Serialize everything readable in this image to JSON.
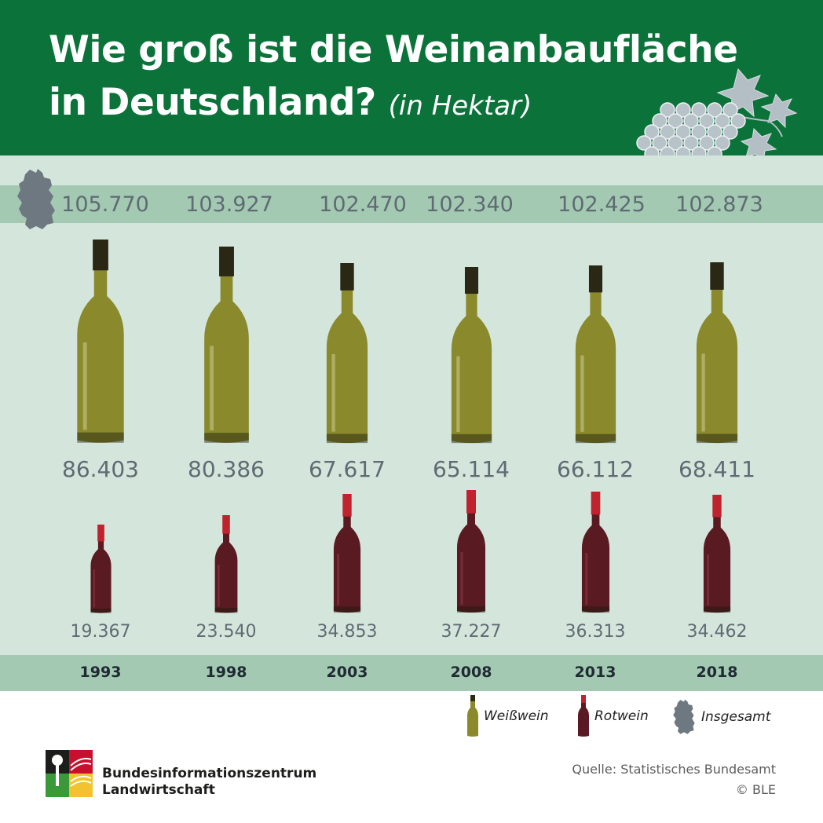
{
  "header": {
    "title_line1": "Wie groß ist die Weinanbaufläche",
    "title_line2": "in Deutschland?",
    "title_unit": "(in Hektar)"
  },
  "colors": {
    "header_green": "#0b7339",
    "panel_green": "#d4e6dc",
    "band_green": "#a3c9b2",
    "white_wine": "#8a8a2c",
    "red_wine": "#5a1a22",
    "red_capsule": "#c0232d",
    "map_gray": "#6e7880"
  },
  "icons": {
    "header_decoration": "grape-vine-icon",
    "total_marker": "germany-map-icon",
    "white_wine": "white-wine-bottle-icon",
    "red_wine": "red-wine-bottle-icon"
  },
  "chart_data": {
    "type": "bar",
    "categories": [
      "1993",
      "1998",
      "2003",
      "2008",
      "2013",
      "2018"
    ],
    "series": [
      {
        "name": "Insgesamt",
        "values": [
          105770,
          103927,
          102470,
          102340,
          102425,
          102873
        ]
      },
      {
        "name": "Weißwein",
        "values": [
          86403,
          80386,
          67617,
          65114,
          66112,
          68411
        ]
      },
      {
        "name": "Rotwein",
        "values": [
          19367,
          23540,
          34853,
          37227,
          36313,
          34462
        ]
      }
    ],
    "labels": {
      "total": [
        "105.770",
        "103.927",
        "102.470",
        "102.340",
        "102.425",
        "102.873"
      ],
      "white": [
        "86.403",
        "80.386",
        "67.617",
        "65.114",
        "66.112",
        "68.411"
      ],
      "red": [
        "19.367",
        "23.540",
        "34.853",
        "37.227",
        "36.313",
        "34.462"
      ]
    },
    "title": "Wie groß ist die Weinanbaufläche in Deutschland? (in Hektar)",
    "legend_position": "bottom-right"
  },
  "legend": {
    "white_label": "Weißwein",
    "red_label": "Rotwein",
    "total_label": "Insgesamt"
  },
  "footer": {
    "org_line1": "Bundesinformationszentrum",
    "org_line2": "Landwirtschaft",
    "source_line1": "Quelle: Statistisches Bundesamt",
    "source_line2": "© BLE"
  }
}
